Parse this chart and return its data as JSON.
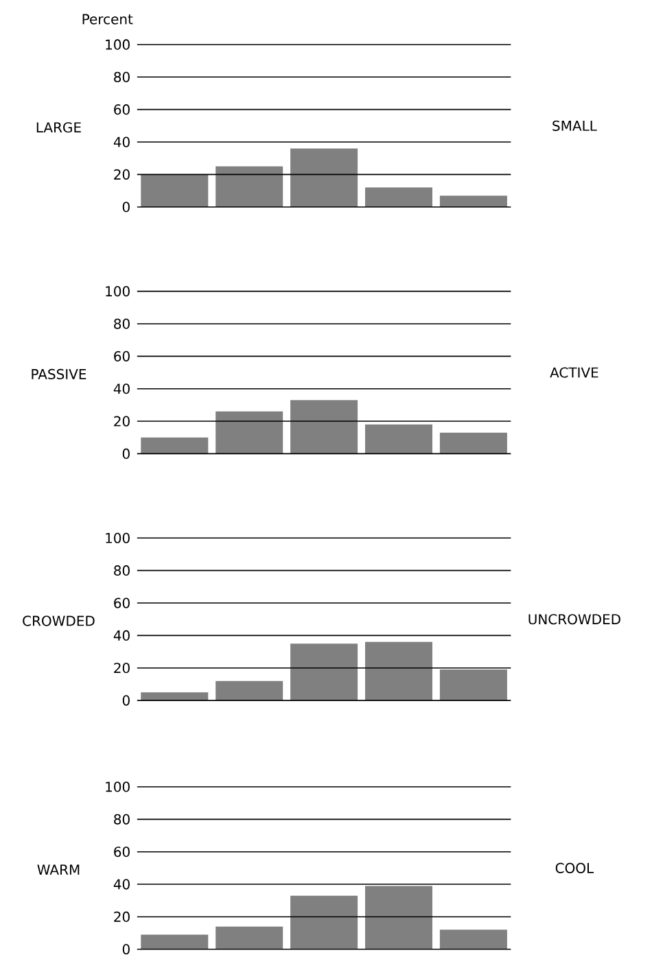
{
  "chart_data": [
    {
      "type": "bar",
      "ylabel": "Percent",
      "annotations": [
        "LARGE",
        "SMALL"
      ],
      "categories": [
        null,
        null,
        null,
        null,
        null
      ],
      "values": [
        20,
        25,
        36,
        12,
        7
      ],
      "color": "#808080",
      "ylim": [
        0,
        100
      ],
      "yticks": [
        0,
        20,
        40,
        60,
        80,
        100
      ],
      "grid": "y"
    },
    {
      "type": "bar",
      "annotations": [
        "PASSIVE",
        "ACTIVE"
      ],
      "categories": [
        null,
        null,
        null,
        null,
        null
      ],
      "values": [
        10,
        26,
        33,
        18,
        13
      ],
      "color": "#808080",
      "ylim": [
        0,
        100
      ],
      "yticks": [
        0,
        20,
        40,
        60,
        80,
        100
      ],
      "grid": "y"
    },
    {
      "type": "bar",
      "annotations": [
        "CROWDED",
        "UNCROWDED"
      ],
      "categories": [
        null,
        null,
        null,
        null,
        null
      ],
      "values": [
        5,
        12,
        35,
        36,
        19
      ],
      "color": "#808080",
      "ylim": [
        0,
        100
      ],
      "yticks": [
        0,
        20,
        40,
        60,
        80,
        100
      ],
      "grid": "y"
    },
    {
      "type": "bar",
      "annotations": [
        "WARM",
        "COOL"
      ],
      "categories": [
        null,
        null,
        null,
        null,
        null
      ],
      "values": [
        9,
        14,
        33,
        39,
        12
      ],
      "color": "#808080",
      "ylim": [
        0,
        100
      ],
      "yticks": [
        0,
        20,
        40,
        60,
        80,
        100
      ],
      "grid": "y"
    }
  ]
}
